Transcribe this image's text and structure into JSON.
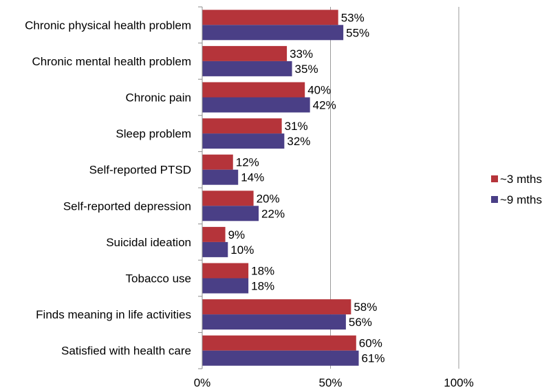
{
  "chart_data": {
    "type": "bar",
    "orientation": "horizontal",
    "categories": [
      "Chronic physical health problem",
      "Chronic mental health problem",
      "Chronic pain",
      "Sleep problem",
      "Self-reported PTSD",
      "Self-reported depression",
      "Suicidal ideation",
      "Tobacco use",
      "Finds meaning in life activities",
      "Satisfied with health care"
    ],
    "series": [
      {
        "name": "~3 mths",
        "color": "#b5343a",
        "values": [
          53,
          33,
          40,
          31,
          12,
          20,
          9,
          18,
          58,
          60
        ],
        "labels": [
          "53%",
          "33%",
          "40%",
          "31%",
          "12%",
          "20%",
          "9%",
          "18%",
          "58%",
          "60%"
        ]
      },
      {
        "name": "~9 mths",
        "color": "#4a3f86",
        "values": [
          55,
          35,
          42,
          32,
          14,
          22,
          10,
          18,
          56,
          61
        ],
        "labels": [
          "55%",
          "35%",
          "42%",
          "32%",
          "14%",
          "22%",
          "10%",
          "18%",
          "56%",
          "61%"
        ]
      }
    ],
    "xlim": [
      0,
      100
    ],
    "xticks": [
      0,
      50,
      100
    ],
    "xtick_labels": [
      "0%",
      "50%",
      "100%"
    ],
    "grid": "vertical major gridlines",
    "legend_position": "right"
  }
}
